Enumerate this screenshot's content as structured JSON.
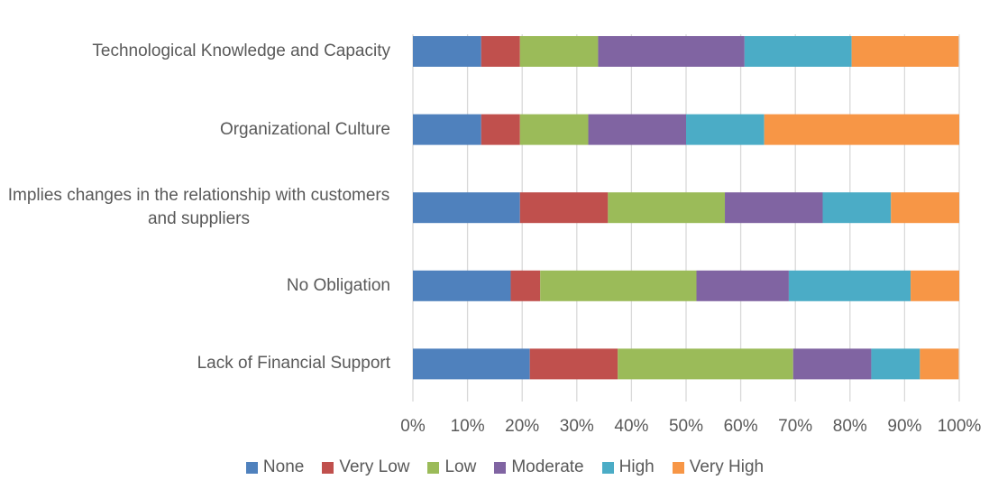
{
  "chart_data": {
    "type": "stacked_bar_horizontal",
    "categories": [
      "Technological Knowledge and Capacity",
      "Organizational Culture",
      "Implies changes in the relationship with customers and suppliers",
      "No Obligation",
      "Lack of Financial Support"
    ],
    "series": [
      {
        "name": "None",
        "color": "#4f81bd",
        "values": [
          12.5,
          12.5,
          19.6,
          17.9,
          21.4
        ]
      },
      {
        "name": "Very Low",
        "color": "#c0504d",
        "values": [
          7.1,
          7.1,
          16.1,
          5.4,
          16.1
        ]
      },
      {
        "name": "Low",
        "color": "#9bbb59",
        "values": [
          14.3,
          12.5,
          21.4,
          28.6,
          32.1
        ]
      },
      {
        "name": "Moderate",
        "color": "#8064a2",
        "values": [
          26.8,
          17.9,
          17.9,
          16.9,
          14.3
        ]
      },
      {
        "name": "High",
        "color": "#4bacc6",
        "values": [
          19.6,
          14.3,
          12.5,
          22.3,
          8.9
        ]
      },
      {
        "name": "Very High",
        "color": "#f79646",
        "values": [
          19.6,
          35.7,
          12.5,
          8.9,
          7.1
        ]
      }
    ],
    "xlim": [
      0,
      100
    ],
    "xticks": [
      {
        "value": 0,
        "label": "0%"
      },
      {
        "value": 10,
        "label": "10%"
      },
      {
        "value": 20,
        "label": "20%"
      },
      {
        "value": 30,
        "label": "30%"
      },
      {
        "value": 40,
        "label": "40%"
      },
      {
        "value": 50,
        "label": "50%"
      },
      {
        "value": 60,
        "label": "60%"
      },
      {
        "value": 70,
        "label": "70%"
      },
      {
        "value": 80,
        "label": "80%"
      },
      {
        "value": 90,
        "label": "90%"
      },
      {
        "value": 100,
        "label": "100%"
      }
    ],
    "grid": true,
    "legend": "bottom"
  }
}
